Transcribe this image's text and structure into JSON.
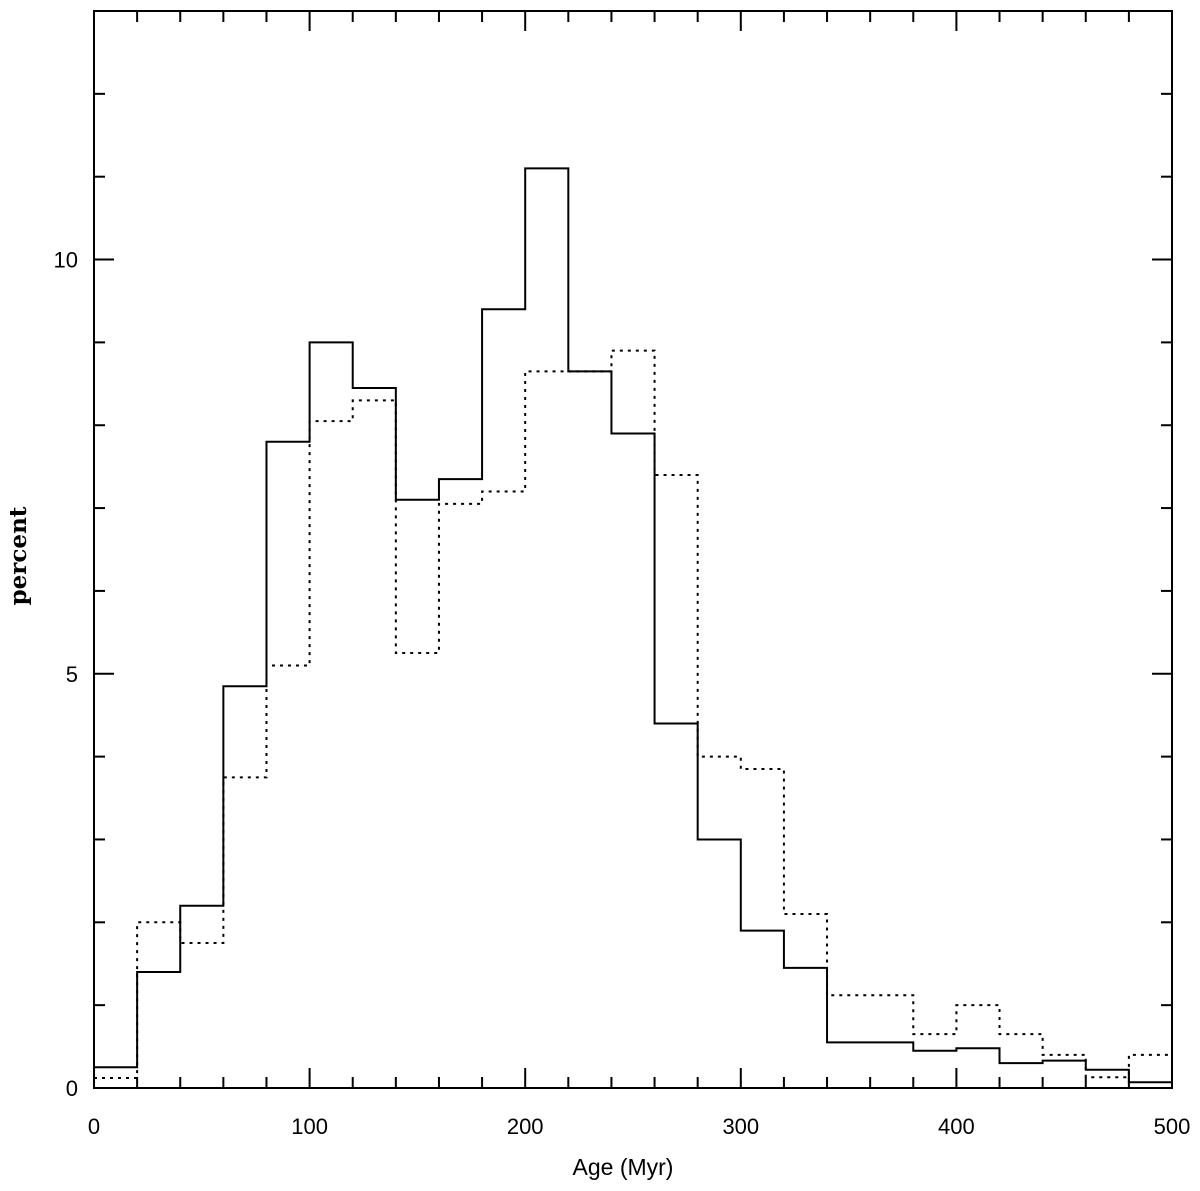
{
  "chart_data": {
    "type": "bar",
    "subtype": "step-histogram",
    "xlabel": "Age (Myr)",
    "ylabel": "percent",
    "xlim": [
      0,
      500
    ],
    "ylim": [
      0,
      13
    ],
    "bin_width": 20,
    "x_ticks": [
      0,
      100,
      200,
      300,
      400,
      500
    ],
    "x_tick_labels": [
      "0",
      "100",
      "200",
      "300",
      "400",
      "500"
    ],
    "y_ticks": [
      0,
      5,
      10
    ],
    "y_tick_labels": [
      "0",
      "5",
      "10"
    ],
    "bin_edges": [
      0,
      20,
      40,
      60,
      80,
      100,
      120,
      140,
      160,
      180,
      200,
      220,
      240,
      260,
      280,
      300,
      320,
      340,
      360,
      380,
      400,
      420,
      440,
      460,
      480,
      500
    ],
    "series": [
      {
        "line_style": "solid",
        "values": [
          0.25,
          1.4,
          2.2,
          4.85,
          7.8,
          9.0,
          8.45,
          7.1,
          7.35,
          9.4,
          11.1,
          8.65,
          7.9,
          4.4,
          3.0,
          1.9,
          1.45,
          0.55,
          0.55,
          0.45,
          0.48,
          0.3,
          0.33,
          0.22,
          0.07
        ],
        "color": "#000000"
      },
      {
        "line_style": "dotted",
        "values": [
          0.12,
          2.0,
          1.75,
          3.75,
          5.1,
          8.05,
          8.3,
          5.25,
          7.05,
          7.2,
          8.65,
          8.65,
          8.9,
          7.4,
          4.0,
          3.85,
          2.1,
          1.12,
          1.12,
          0.65,
          1.0,
          0.65,
          0.4,
          0.13,
          0.4
        ],
        "color": "#000000"
      }
    ],
    "grid": false,
    "legend": false
  }
}
